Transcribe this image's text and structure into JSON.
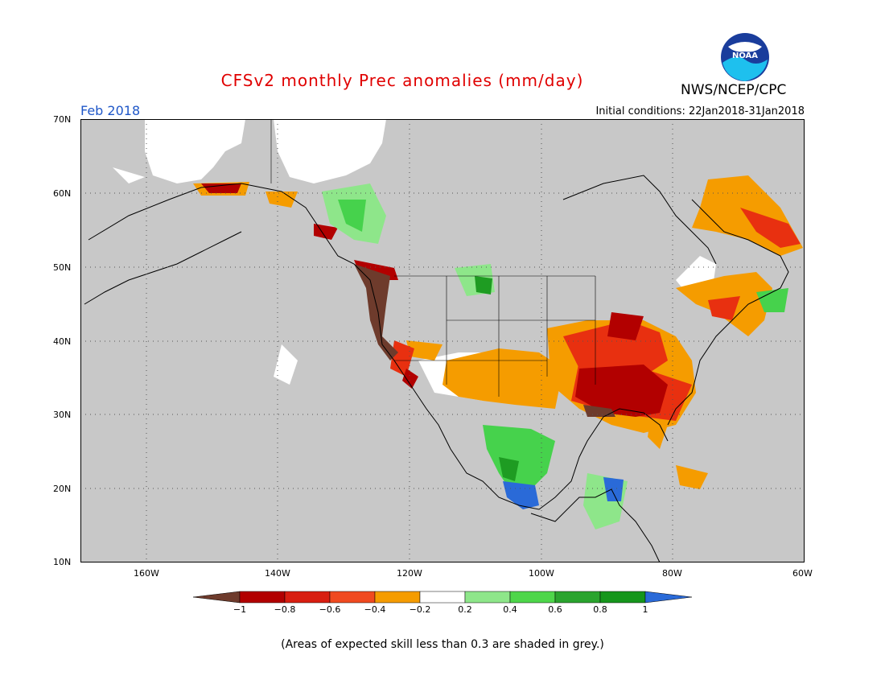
{
  "header": {
    "title": "CFSv2 monthly Prec anomalies (mm/day)",
    "org": "NWS/NCEP/CPC",
    "logo_text": "NOAA",
    "month": "Feb 2018",
    "initial_conditions": "Initial conditions: 22Jan2018-31Jan2018"
  },
  "map": {
    "lat_labels": [
      "70N",
      "60N",
      "50N",
      "40N",
      "30N",
      "20N",
      "10N"
    ],
    "lon_labels": [
      "160W",
      "140W",
      "120W",
      "100W",
      "80W",
      "60W"
    ],
    "region_colors": {
      "grey": "#c8c8c8",
      "white": "#ffffff",
      "brown": "#6e3b2c",
      "dark_red": "#b20000",
      "red": "#e83010",
      "orange": "#f59c00",
      "light_green": "#8ee68a",
      "green": "#46d24c",
      "dark_green": "#1e9c22",
      "blue": "#2a6ad8"
    }
  },
  "colorbar": {
    "ticks": [
      "−1",
      "−0.8",
      "−0.6",
      "−0.4",
      "−0.2",
      "0.2",
      "0.4",
      "0.6",
      "0.8",
      "1"
    ],
    "colors": [
      "#6e3b2c",
      "#b20000",
      "#d81e10",
      "#f04a20",
      "#f59c00",
      "#ffffff",
      "#8ee68a",
      "#4ed64a",
      "#2aa42e",
      "#16961c",
      "#2a6ad8"
    ]
  },
  "footnote": "(Areas of expected skill less than 0.3 are shaded in grey.)"
}
